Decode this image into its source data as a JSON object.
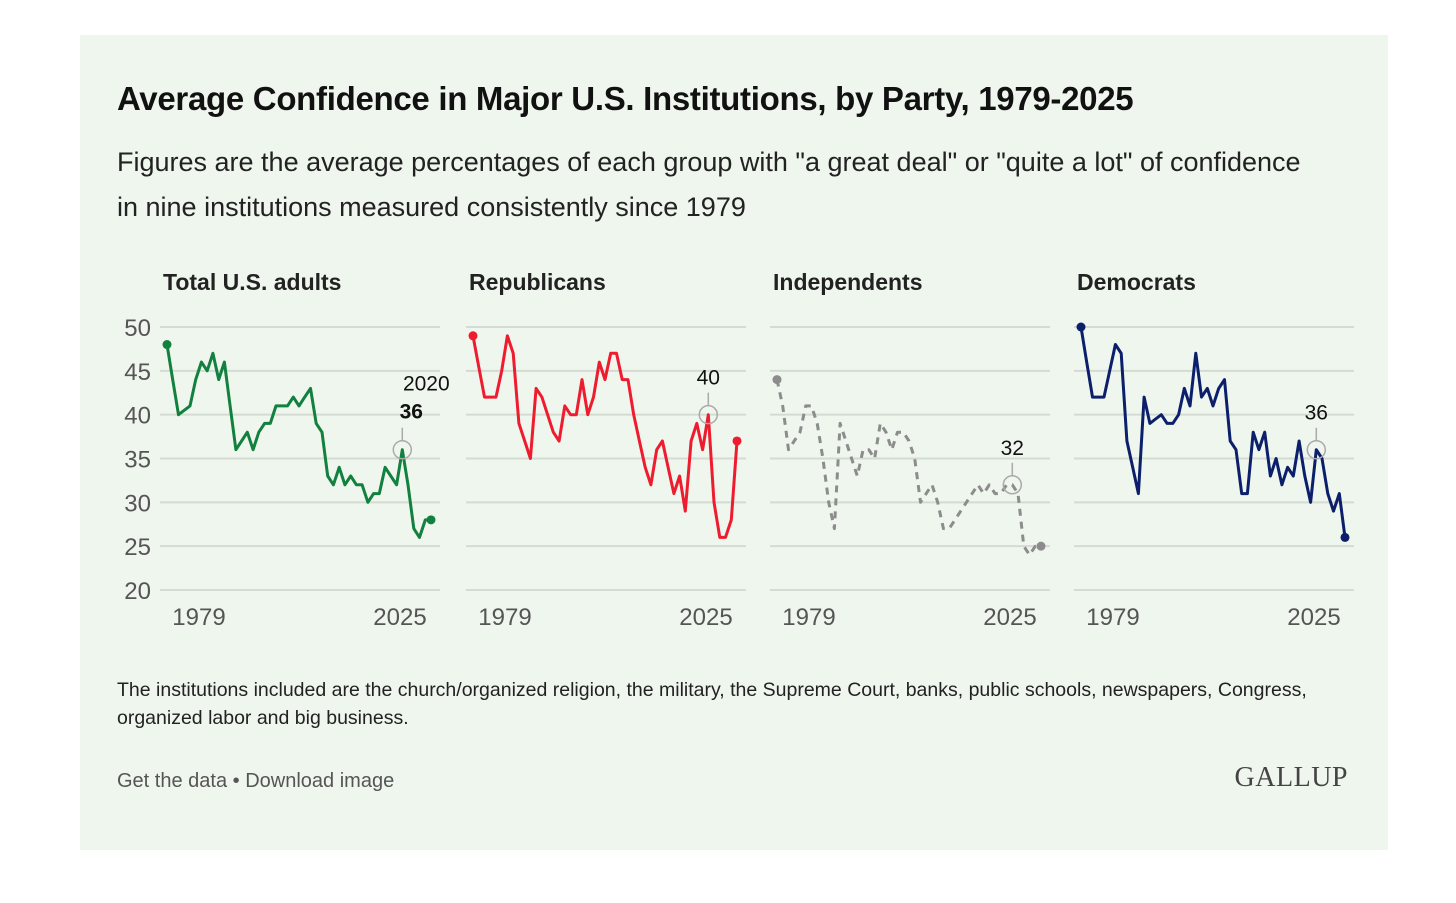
{
  "title": "Average Confidence in Major U.S. Institutions, by Party, 1979-2025",
  "subtitle": "Figures are the average percentages of each group with \"a great deal\" or \"quite a lot\" of confidence in nine institutions measured consistently since 1979",
  "note": "The institutions included are the church/organized religion, the military, the Supreme Court, banks, public schools, newspapers, Congress, organized labor and big business.",
  "links": {
    "get_data": "Get the data",
    "separator": "•",
    "download": "Download image"
  },
  "logo": "GALLUP",
  "chart_data": {
    "type": "line",
    "ylim": [
      20,
      50
    ],
    "yticks": [
      "50",
      "45",
      "40",
      "35",
      "30",
      "25",
      "20"
    ],
    "xtick_labels": [
      "1979",
      "2025"
    ],
    "grid": true,
    "panels": [
      {
        "name": "Total U.S. adults",
        "color": "#12803e",
        "dashed": false,
        "values": [
          48,
          44,
          40,
          40.5,
          41,
          44,
          46,
          45,
          47,
          44,
          46,
          41,
          36,
          37,
          38,
          36,
          38,
          39,
          39,
          41,
          41,
          41,
          42,
          41,
          42,
          43,
          39,
          38,
          33,
          32,
          34,
          32,
          33,
          32,
          32,
          30,
          31,
          31,
          34,
          33,
          32,
          36,
          32,
          27,
          26,
          28,
          28
        ],
        "annotation": {
          "index": 41,
          "year": "2020",
          "value": "36"
        }
      },
      {
        "name": "Republicans",
        "color": "#ee1c2e",
        "dashed": false,
        "values": [
          49,
          45.5,
          42,
          42,
          42,
          45,
          49,
          47,
          39,
          37,
          35,
          43,
          42,
          40,
          38,
          37,
          41,
          40,
          40,
          44,
          40,
          42,
          46,
          44,
          47,
          47,
          44,
          44,
          40,
          37,
          34,
          32,
          36,
          37,
          34,
          31,
          33,
          29,
          37,
          39,
          36,
          40,
          30,
          26,
          26,
          28,
          37
        ],
        "annotation": {
          "index": 41,
          "value": "40"
        }
      },
      {
        "name": "Independents",
        "color": "#8c8c8c",
        "dashed": true,
        "values": [
          44,
          41,
          36,
          37,
          38,
          41,
          41,
          39,
          35,
          30,
          27,
          39,
          37,
          35,
          33,
          36,
          36,
          35,
          39,
          38,
          36,
          38,
          38,
          37,
          35,
          30,
          31,
          32,
          30,
          27,
          27,
          28,
          29,
          30,
          31,
          32,
          31,
          32,
          31,
          31,
          32,
          32,
          31,
          25,
          24,
          25,
          25
        ],
        "annotation": {
          "index": 41,
          "value": "32"
        }
      },
      {
        "name": "Democrats",
        "color": "#0b1f6b",
        "dashed": false,
        "values": [
          50,
          46,
          42,
          42,
          42,
          45,
          48,
          47,
          37,
          34,
          31,
          42,
          39,
          39.5,
          40,
          39,
          39,
          40,
          43,
          41,
          47,
          42,
          43,
          41,
          43,
          44,
          37,
          36,
          31,
          31,
          38,
          36,
          38,
          33,
          35,
          32,
          34,
          33,
          37,
          33,
          30,
          36,
          35,
          31,
          29,
          31,
          26
        ],
        "annotation": {
          "index": 41,
          "value": "36"
        }
      }
    ]
  }
}
